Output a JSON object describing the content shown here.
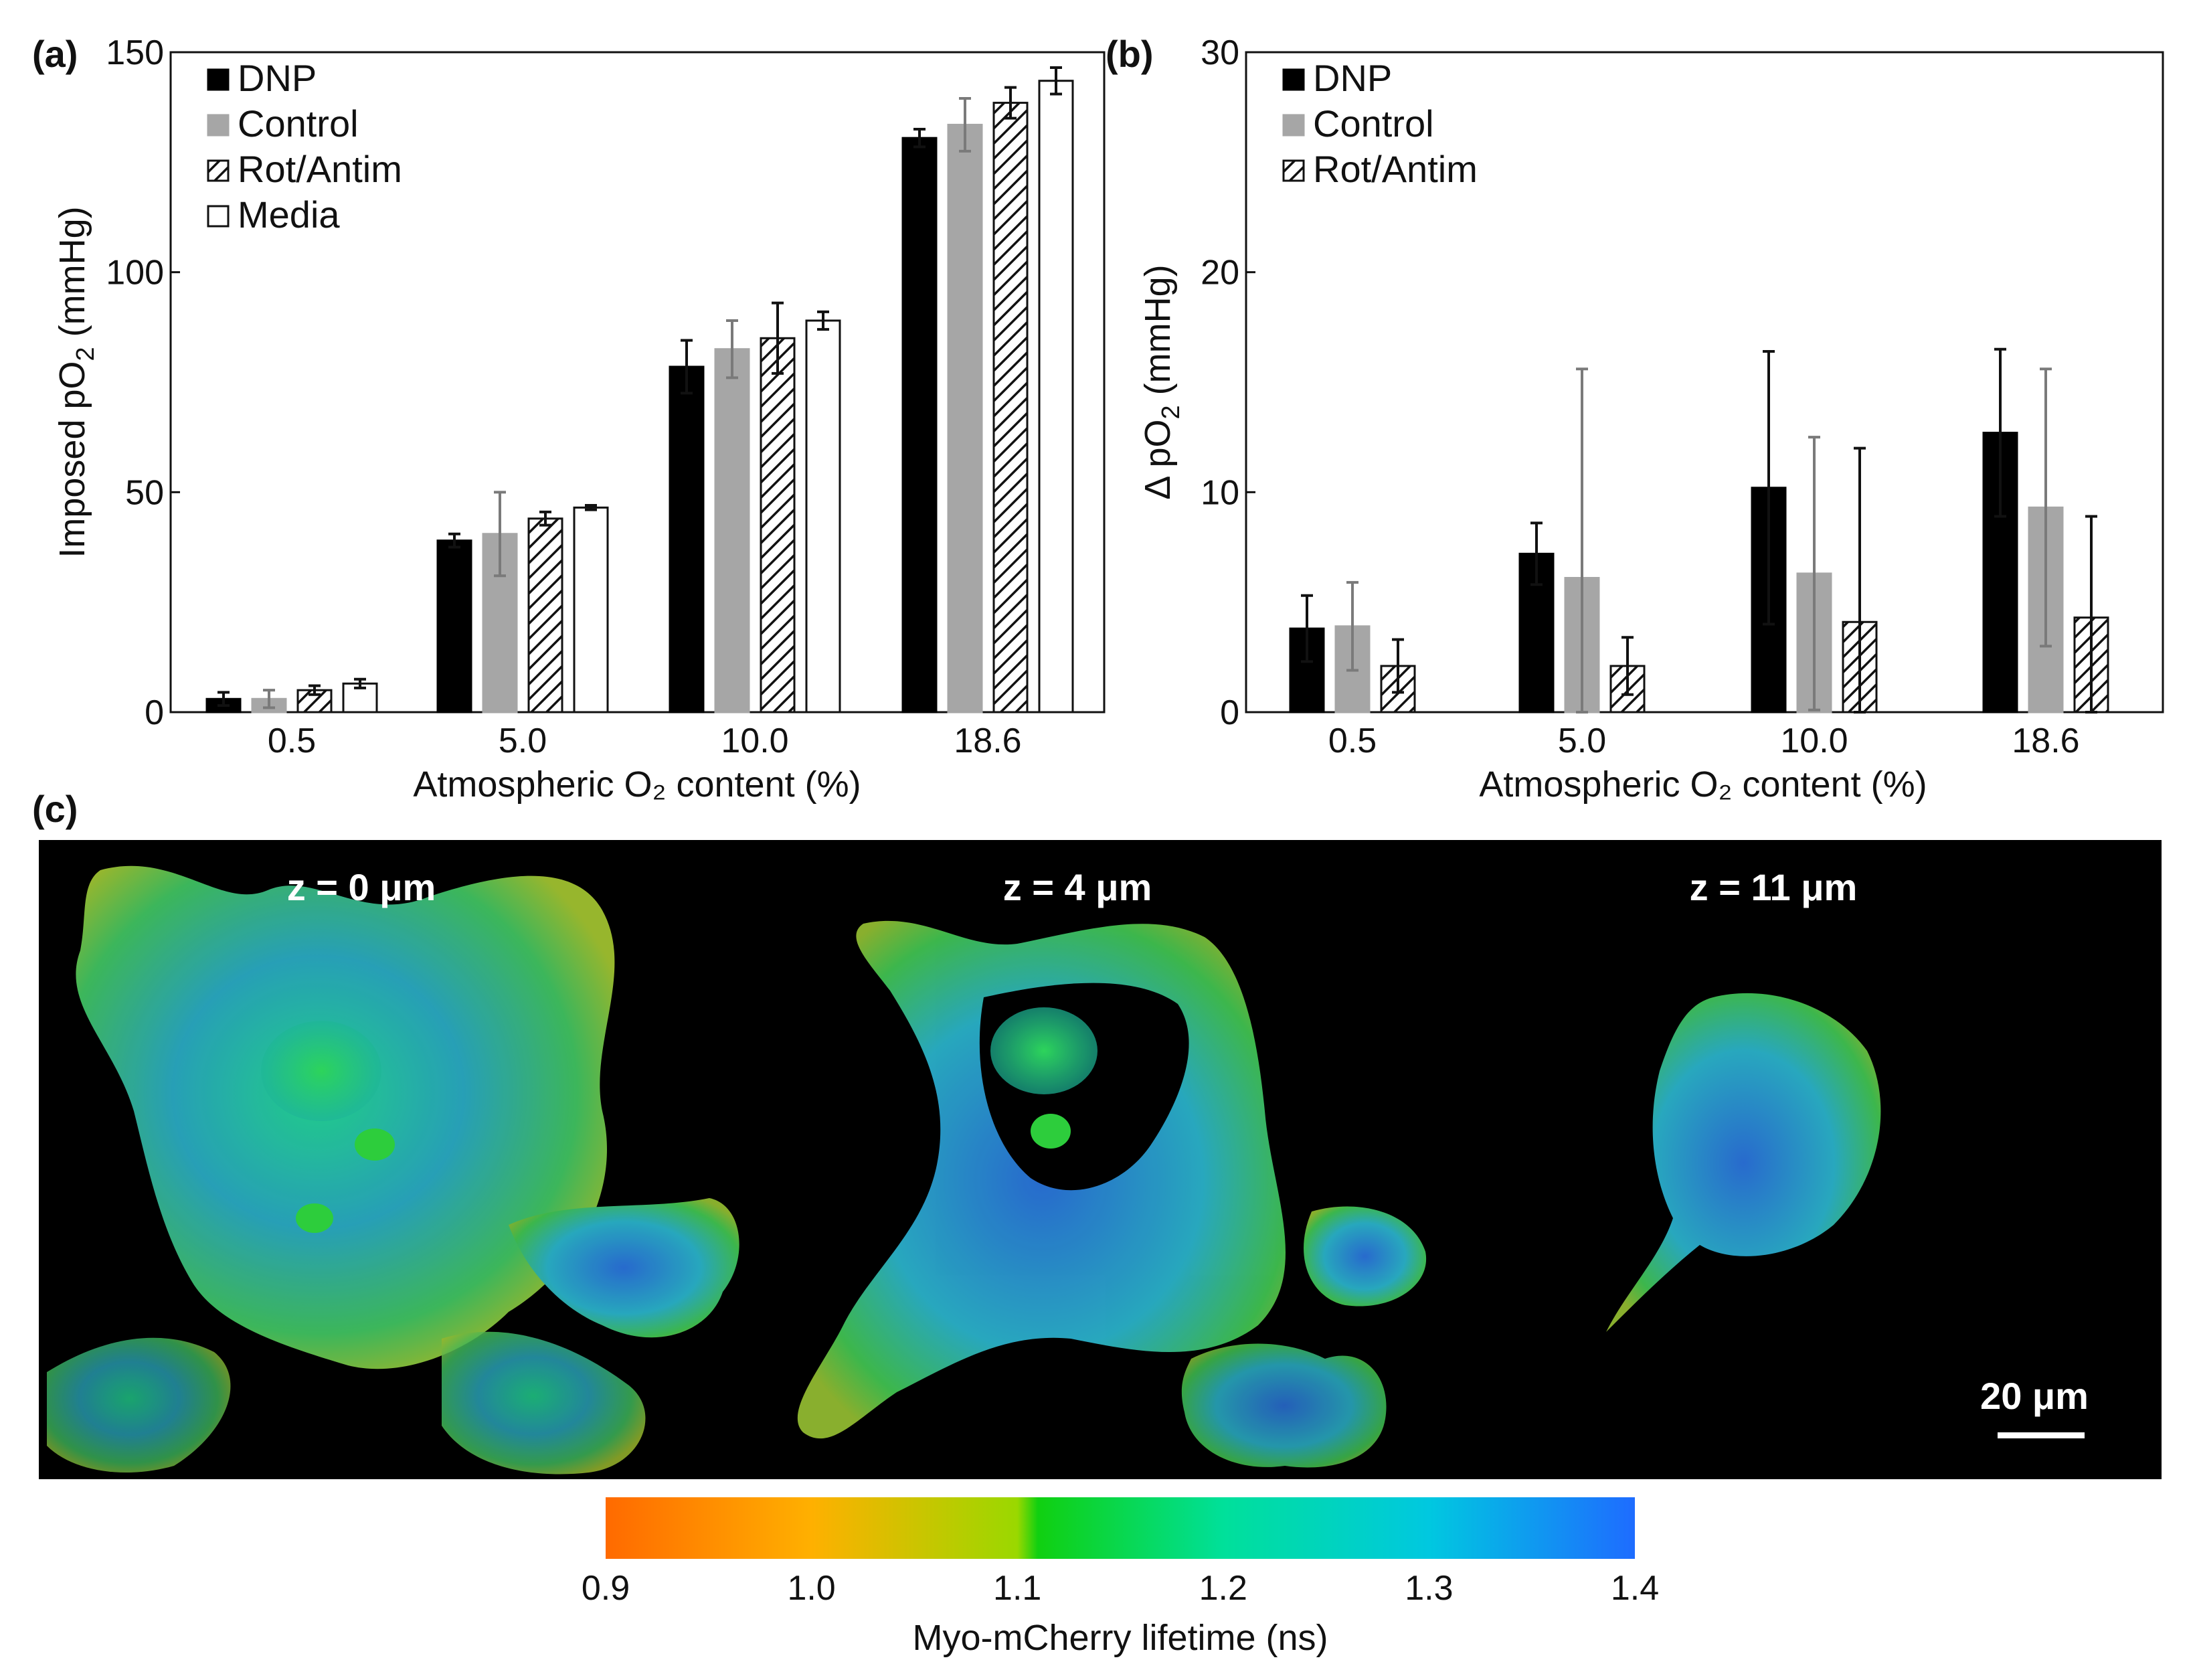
{
  "chart_data": [
    {
      "id": "a",
      "panel_label": "(a)",
      "type": "bar",
      "categories": [
        "0.5",
        "5.0",
        "10.0",
        "18.6"
      ],
      "series": [
        {
          "name": "DNP",
          "style": "solid-black",
          "values": [
            3,
            39,
            78.5,
            130.5
          ],
          "errors": [
            1.5,
            1.5,
            6,
            2
          ]
        },
        {
          "name": "Control",
          "style": "solid-gray",
          "values": [
            3,
            40.5,
            82.5,
            133.5
          ],
          "errors": [
            2,
            9.5,
            6.5,
            6
          ]
        },
        {
          "name": "Rot/Antim",
          "style": "hatched",
          "values": [
            5,
            44,
            85,
            138.5
          ],
          "errors": [
            1,
            1.5,
            8,
            3.5
          ]
        },
        {
          "name": "Media",
          "style": "open",
          "values": [
            6.5,
            46.5,
            89,
            143.5
          ],
          "errors": [
            1,
            0.5,
            2,
            3
          ]
        }
      ],
      "xlabel": "Atmospheric O₂ content (%)",
      "ylabel_main": "Imposed pO",
      "ylabel_sub": "2",
      "ylabel_unit": " (mmHg)",
      "ylim": [
        0,
        150
      ],
      "yticks": [
        "0",
        "50",
        "100",
        "150"
      ],
      "legend_position": "top-left"
    },
    {
      "id": "b",
      "panel_label": "(b)",
      "type": "bar",
      "categories": [
        "0.5",
        "5.0",
        "10.0",
        "18.6"
      ],
      "series": [
        {
          "name": "DNP",
          "style": "solid-black",
          "values": [
            3.8,
            7.2,
            10.2,
            12.7
          ],
          "errors": [
            1.5,
            1.4,
            6.2,
            3.8
          ]
        },
        {
          "name": "Control",
          "style": "solid-gray",
          "values": [
            3.9,
            6.1,
            6.3,
            9.3
          ],
          "errors": [
            2.0,
            9.5,
            6.2,
            6.3
          ]
        },
        {
          "name": "Rot/Antim",
          "style": "hatched",
          "values": [
            2.1,
            2.1,
            4.1,
            4.3
          ],
          "errors": [
            1.2,
            1.3,
            7.9,
            4.6
          ]
        }
      ],
      "xlabel": "Atmospheric O₂ content (%)",
      "ylabel_main": "Δ pO",
      "ylabel_sub": "2",
      "ylabel_unit": " (mmHg)",
      "ylim": [
        0,
        30
      ],
      "yticks": [
        "0",
        "10",
        "20",
        "30"
      ],
      "legend_position": "top-left"
    }
  ],
  "panel_c": {
    "panel_label": "(c)",
    "slices": [
      "z = 0 μm",
      "z = 4 μm",
      "z = 11 μm"
    ],
    "scale_bar_label": "20 μm",
    "colorbar": {
      "ticks": [
        "0.9",
        "1.0",
        "1.1",
        "1.2",
        "1.3",
        "1.4"
      ],
      "label": "Myo-mCherry lifetime (ns)",
      "min": 0.9,
      "max": 1.4
    }
  }
}
